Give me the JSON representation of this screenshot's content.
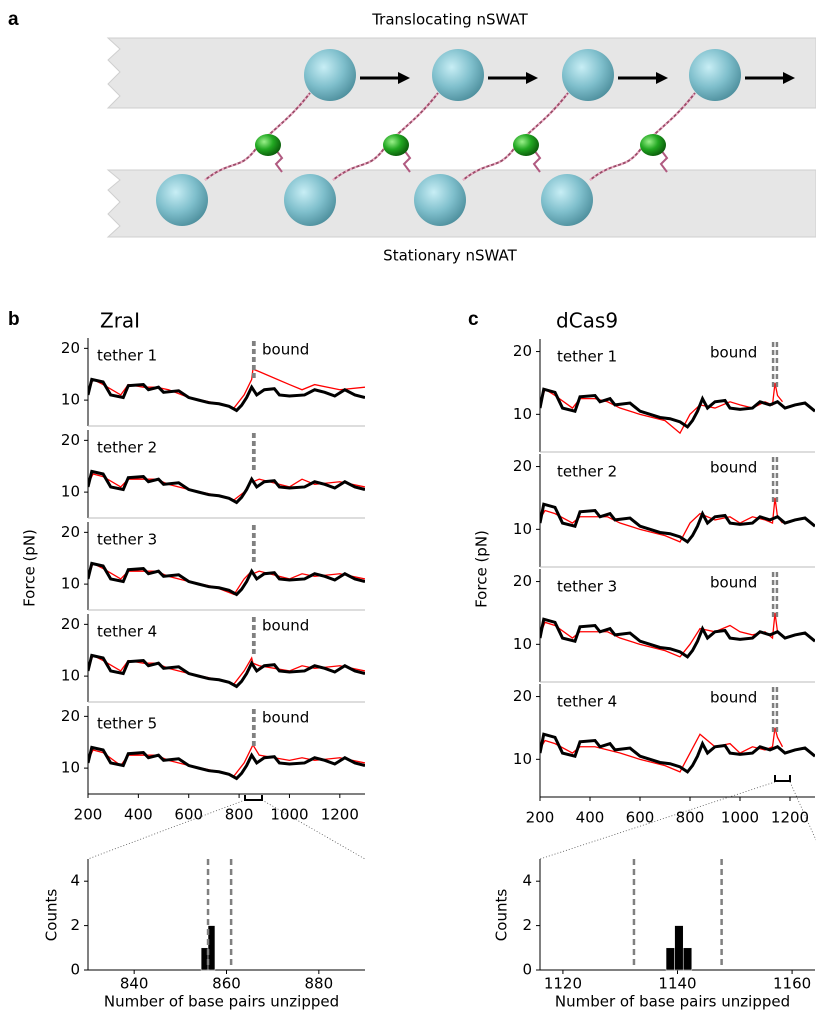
{
  "panel_a": {
    "label": "a",
    "top_label": "Translocating nSWAT",
    "bottom_label": "Stationary nSWAT"
  },
  "chart_data": [
    {
      "type": "line",
      "label": "b",
      "title": "ZraI",
      "ylabel": "Force (pN)",
      "xlim": [
        200,
        1300
      ],
      "xticks": [
        200,
        400,
        600,
        800,
        1000,
        1200
      ],
      "ylim": [
        5,
        22
      ],
      "yticks": [
        10,
        20
      ],
      "theory_color": "#000000",
      "theory_x": [
        200,
        215,
        260,
        290,
        340,
        360,
        420,
        440,
        480,
        500,
        560,
        600,
        640,
        680,
        720,
        760,
        790,
        810,
        830,
        850,
        870,
        900,
        940,
        960,
        1000,
        1060,
        1100,
        1140,
        1180,
        1220,
        1260,
        1300
      ],
      "theory_values": [
        11,
        14,
        13.5,
        11,
        10.5,
        12.8,
        13,
        12,
        12.5,
        11.5,
        11.8,
        10.5,
        10,
        9.5,
        9.3,
        8.8,
        8,
        9,
        10.5,
        12.5,
        11,
        12,
        12.2,
        11,
        10.8,
        11,
        12,
        11.5,
        10.8,
        12,
        11,
        10.5
      ],
      "data_color": "#ff0000",
      "data_x": [
        205,
        220,
        260,
        330,
        360,
        420,
        470,
        520,
        600,
        700,
        780,
        820,
        850,
        855,
        880,
        1000,
        1050,
        1100,
        1200,
        1300
      ],
      "tethers": [
        {
          "name": "tether 1",
          "annotation": "bound",
          "values": [
            12,
            14,
            13,
            11,
            13,
            12.5,
            12.5,
            12,
            10.5,
            9.5,
            8.5,
            11,
            14,
            16,
            15.5,
            13,
            12,
            13,
            12,
            12.5
          ]
        },
        {
          "name": "tether 2",
          "values": [
            12,
            13.5,
            13,
            11,
            12.5,
            12.5,
            12.5,
            11.5,
            10.5,
            9.5,
            8.5,
            10,
            12.5,
            12,
            12.5,
            11,
            12.5,
            11.5,
            12,
            11
          ]
        },
        {
          "name": "tether 3",
          "values": [
            12,
            14,
            13,
            11,
            12.5,
            12.5,
            12.5,
            11.5,
            10.5,
            9.5,
            8,
            11,
            12.5,
            12,
            12.5,
            11,
            12,
            11.5,
            12,
            11
          ]
        },
        {
          "name": "tether 4",
          "annotation": "bound",
          "values": [
            12,
            14,
            13,
            11,
            13,
            12.5,
            12.5,
            11.5,
            10.5,
            9.5,
            8.5,
            11,
            13.5,
            12.5,
            12,
            11,
            12,
            11.5,
            12,
            11
          ]
        },
        {
          "name": "tether 5",
          "annotation": "bound",
          "values": [
            12,
            13.5,
            13,
            10.5,
            12.5,
            12.5,
            12.5,
            11.5,
            10.5,
            9.5,
            8.5,
            11,
            14,
            14.5,
            12.5,
            11.5,
            12,
            11.5,
            12,
            11
          ]
        }
      ],
      "markers": [
        856,
        861
      ],
      "marker_color": "#808080",
      "histogram": {
        "type": "histogram",
        "xlabel": "Number of base pairs unzipped",
        "ylabel": "Counts",
        "bins": [
          854.5,
          856,
          857.5
        ],
        "counts": [
          1,
          2
        ],
        "color": "#000000",
        "xlim": [
          830,
          890
        ],
        "xticks": [
          840,
          860,
          880
        ],
        "ylim": [
          0,
          5
        ],
        "yticks": [
          0,
          2,
          4
        ]
      }
    },
    {
      "type": "line",
      "label": "c",
      "title": "dCas9",
      "ylabel": "Force (pN)",
      "xlim": [
        200,
        1300
      ],
      "xticks": [
        200,
        400,
        600,
        800,
        1000,
        1200
      ],
      "ylim": [
        4,
        22
      ],
      "yticks": [
        10,
        20
      ],
      "theory_color": "#000000",
      "theory_x": [
        200,
        215,
        260,
        290,
        340,
        360,
        420,
        440,
        480,
        500,
        560,
        600,
        640,
        680,
        720,
        760,
        790,
        810,
        830,
        850,
        870,
        900,
        940,
        960,
        1000,
        1050,
        1080,
        1120,
        1150,
        1180,
        1220,
        1260,
        1300
      ],
      "theory_values": [
        11,
        14,
        13.5,
        11,
        10.5,
        12.8,
        13,
        12,
        12.5,
        11.5,
        11.8,
        10.5,
        10,
        9.5,
        9.3,
        8.8,
        8,
        9,
        10.5,
        12.5,
        11,
        12,
        12.2,
        11,
        10.8,
        11,
        12,
        11.5,
        12,
        11,
        11.5,
        11.8,
        10.5
      ],
      "data_color": "#ff0000",
      "data_x": [
        205,
        220,
        260,
        330,
        360,
        420,
        470,
        520,
        600,
        700,
        760,
        800,
        840,
        900,
        960,
        1000,
        1050,
        1100,
        1130,
        1140,
        1150,
        1170
      ],
      "tethers": [
        {
          "name": "tether 1",
          "annotation": "bound",
          "values": [
            12,
            14,
            13,
            11,
            12.5,
            12.5,
            12,
            11,
            10,
            9,
            7,
            10,
            11.5,
            11,
            12,
            11.5,
            11,
            12,
            11.5,
            15,
            13,
            12
          ]
        },
        {
          "name": "tether 2",
          "annotation": "bound",
          "values": [
            12,
            13,
            12.5,
            11,
            12,
            12,
            12,
            11,
            10,
            9,
            8,
            11,
            12.5,
            11.5,
            12,
            11,
            12,
            11.5,
            11,
            15,
            12,
            11
          ]
        },
        {
          "name": "tether 3",
          "annotation": "bound",
          "values": [
            12,
            13.5,
            13,
            11,
            12,
            12,
            12,
            11,
            10,
            9,
            8,
            10,
            12.5,
            12,
            13,
            12,
            11.5,
            12,
            11,
            15,
            12,
            11.5
          ]
        },
        {
          "name": "tether 4",
          "annotation": "bound",
          "values": [
            12,
            13,
            12.5,
            11,
            12,
            12,
            11.5,
            11,
            10,
            9,
            8,
            11,
            14,
            12,
            12.5,
            11,
            12,
            11.5,
            12,
            15,
            13.5,
            12
          ]
        }
      ],
      "markers": [
        1132.4,
        1147.7
      ],
      "marker_color": "#808080",
      "histogram": {
        "type": "histogram",
        "xlabel": "Number of base pairs unzipped",
        "ylabel": "Counts",
        "bins": [
          1138,
          1139.5,
          1141,
          1142.5
        ],
        "counts": [
          1,
          2,
          1
        ],
        "color": "#000000",
        "xlim": [
          1116,
          1164
        ],
        "xticks": [
          1120,
          1140,
          1160
        ],
        "ylim": [
          0,
          5
        ],
        "yticks": [
          0,
          2,
          4
        ]
      }
    }
  ]
}
